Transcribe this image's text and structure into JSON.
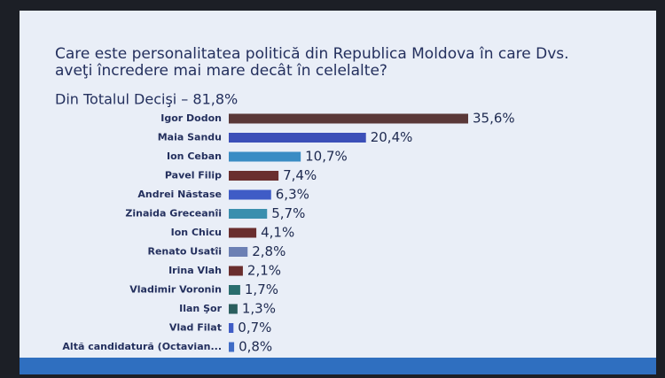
{
  "chart_data": {
    "type": "bar",
    "orientation": "horizontal",
    "title": "Care este personalitatea politică din Republica Moldova în care Dvs. aveţi încredere mai mare decât în celelalte?",
    "subtitle": "Din Totalul Decişi – 81,8%",
    "categories": [
      "Igor Dodon",
      "Maia Sandu",
      "Ion Ceban",
      "Pavel Filip",
      "Andrei Năstase",
      "Zinaida Greceanîi",
      "Ion Chicu",
      "Renato Usatîi",
      "Irina Vlah",
      "Vladimir Voronin",
      "Ilan Şor",
      "Vlad Filat",
      "Altă candidatură (Octavian..."
    ],
    "values": [
      35.6,
      20.4,
      10.7,
      7.4,
      6.3,
      5.7,
      4.1,
      2.8,
      2.1,
      1.7,
      1.3,
      0.7,
      0.8
    ],
    "value_labels": [
      "35,6%",
      "20,4%",
      "10,7%",
      "7,4%",
      "6,3%",
      "5,7%",
      "4,1%",
      "2,8%",
      "2,1%",
      "1,7%",
      "1,3%",
      "0,7%",
      "0,8%"
    ],
    "colors": [
      "#5a3838",
      "#3b4fb8",
      "#3a8cc4",
      "#6a2e2e",
      "#3f5cc6",
      "#3a8fae",
      "#6a2e2e",
      "#6c80b4",
      "#6a2e2e",
      "#2a6e6e",
      "#2a5e5e",
      "#3f5cc6",
      "#3f6cc6"
    ]
  }
}
